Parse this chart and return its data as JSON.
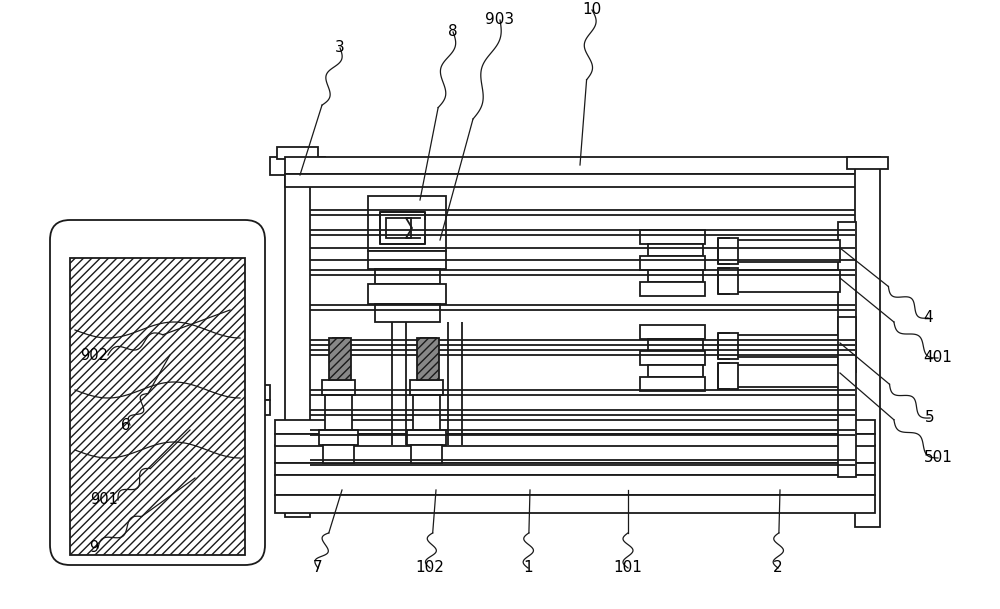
{
  "bg_color": "#ffffff",
  "line_color": "#1a1a1a",
  "fig_width": 10.0,
  "fig_height": 6.09,
  "dpi": 100,
  "lw": 1.3
}
